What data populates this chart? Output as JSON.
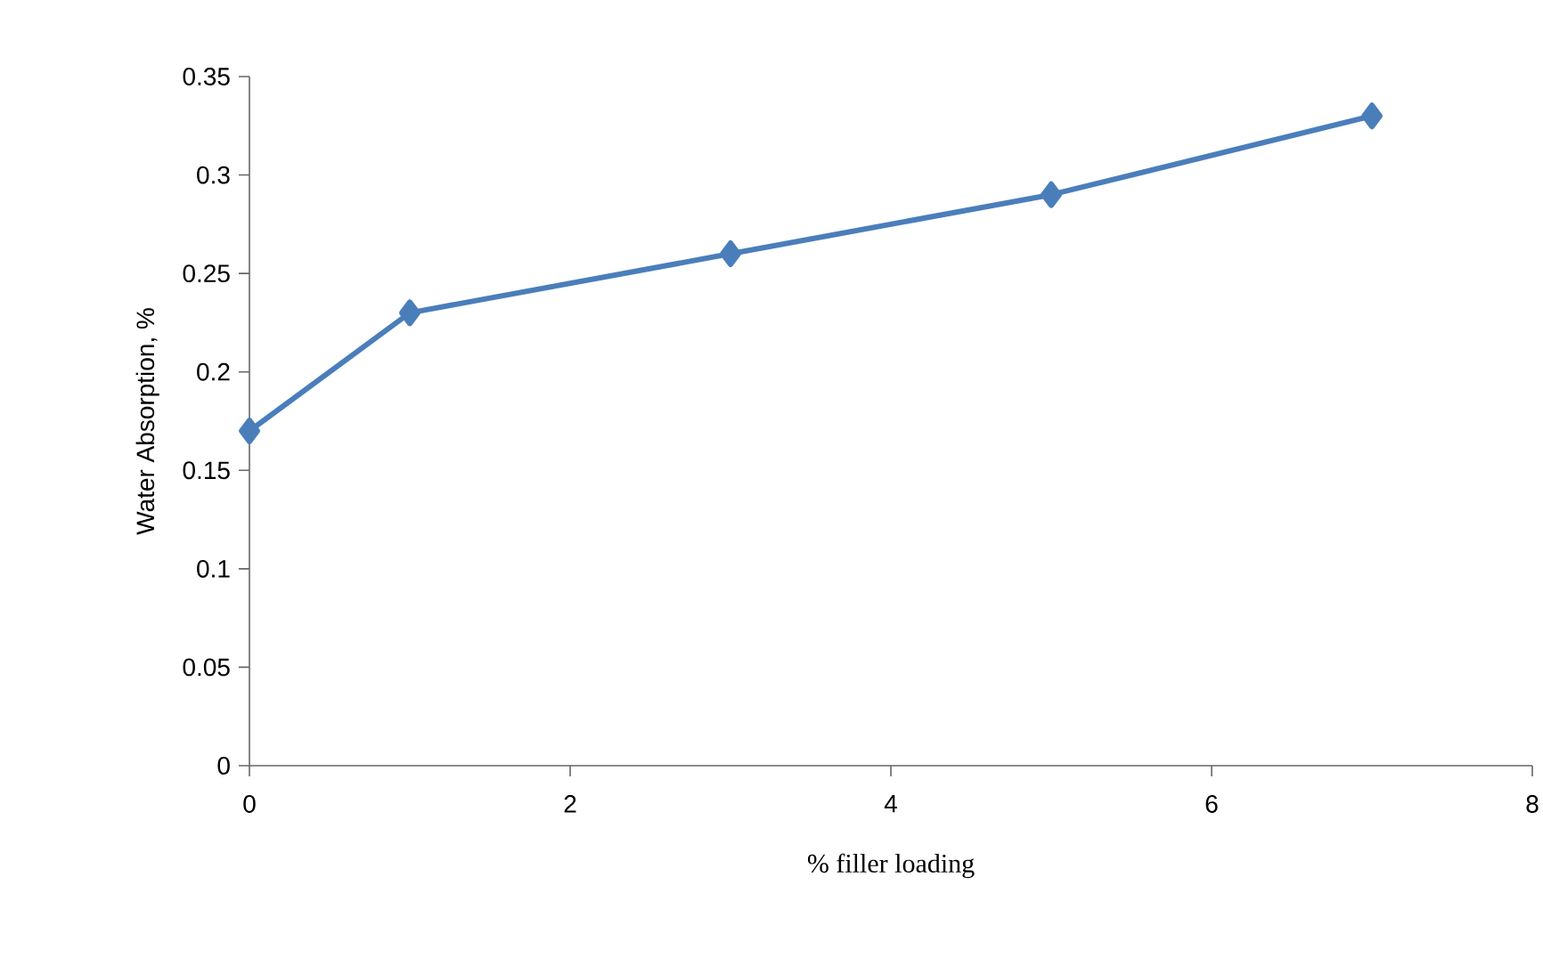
{
  "chart_data": {
    "type": "line",
    "xlabel": "% filler loading",
    "ylabel": "Water Absorption, %",
    "x": [
      0,
      1,
      3,
      5,
      7
    ],
    "series": [
      {
        "color": "#4a7ebb",
        "values": [
          0.17,
          0.23,
          0.26,
          0.29,
          0.33
        ]
      }
    ],
    "xlim": [
      0,
      8
    ],
    "xticks": [
      0,
      2,
      4,
      6,
      8
    ],
    "ylim": [
      0,
      0.35
    ],
    "yticks": [
      0,
      0.05,
      0.1,
      0.15,
      0.2,
      0.25,
      0.3,
      0.35
    ],
    "grid": false,
    "marker": "diamond",
    "line_style": "solid"
  }
}
